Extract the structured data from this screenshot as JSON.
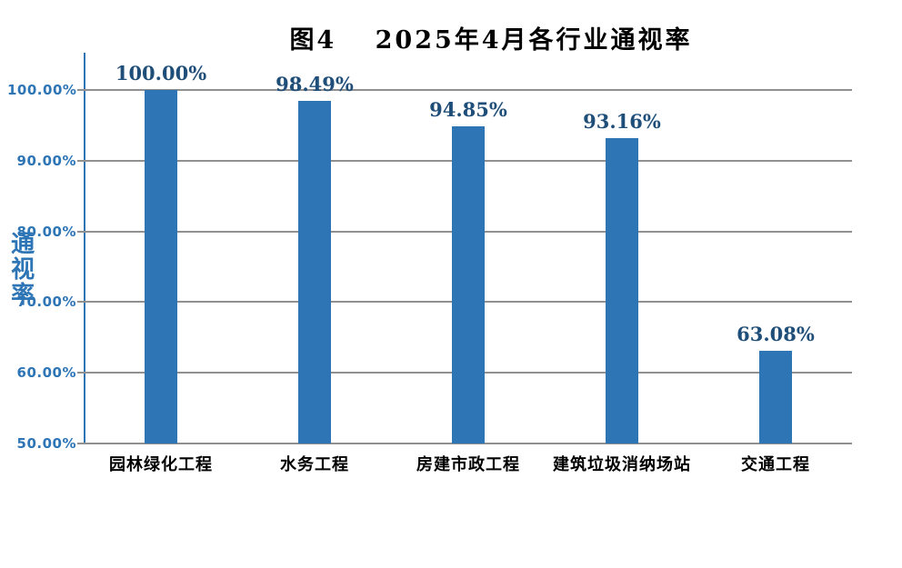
{
  "chart_data": {
    "type": "bar",
    "title": "图4　 2025年4月各行业通视率",
    "ylabel": "通视率",
    "xlabel": "",
    "categories": [
      "园林绿化工程",
      "水务工程",
      "房建市政工程",
      "建筑垃圾消纳场站",
      "交通工程"
    ],
    "values": [
      100.0,
      98.49,
      94.85,
      93.16,
      63.08
    ],
    "data_labels": [
      "100.00%",
      "98.49%",
      "94.85%",
      "93.16%",
      "63.08%"
    ],
    "y_tick_labels": [
      "100.00%",
      "90.00%",
      "80.00%",
      "70.00%",
      "60.00%",
      "50.00%"
    ],
    "y_tick_values": [
      100,
      90,
      80,
      70,
      60,
      50
    ],
    "ylim": [
      50,
      105.3
    ],
    "grid": true,
    "legend_position": "none",
    "colors": {
      "bar": "#2E75B6",
      "data_label": "#1F4E79",
      "y_tick_label": "#2E75B6",
      "y_axis_line": "#2E75B6",
      "gridline": "#909090",
      "title": "#000000",
      "category_label": "#000000"
    }
  }
}
